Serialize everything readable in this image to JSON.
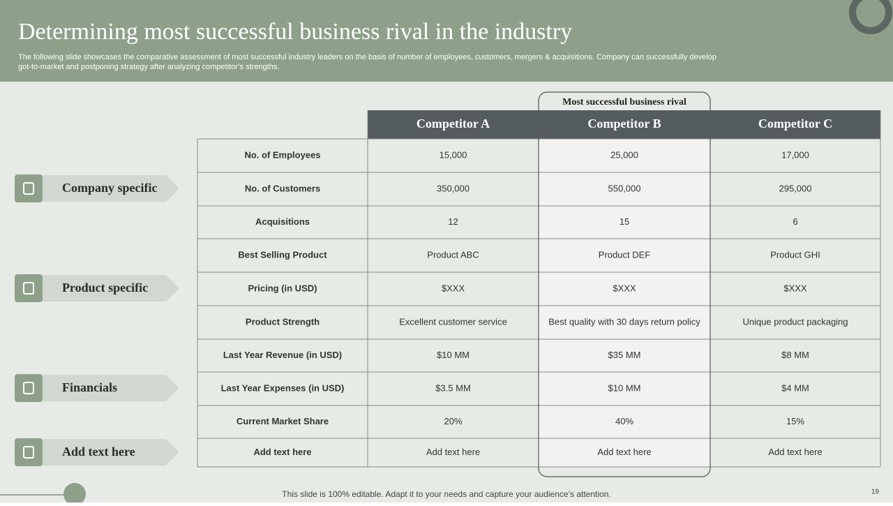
{
  "header": {
    "title": "Determining most successful business rival in the industry",
    "subtitle_lines": [
      "The following slide showcases the comparative assessment of most successful industry leaders on the basis of number of employees, customers, mergers & acquisitions. Company can successfully develop",
      "got-to-market and postponing strategy after analyzing competitor’s strengths."
    ]
  },
  "highlight_label": "Most successful business rival",
  "categories": [
    "Company specific",
    "Product specific",
    "Financials",
    "Add text here"
  ],
  "table": {
    "columns": [
      "Competitor A",
      "Competitor B",
      "Competitor C"
    ],
    "rows": [
      {
        "label": "No. of Employees",
        "cells": [
          "15,000",
          "25,000",
          "17,000"
        ]
      },
      {
        "label": "No. of Customers",
        "cells": [
          "350,000",
          "550,000",
          "295,000"
        ]
      },
      {
        "label": "Acquisitions",
        "cells": [
          "12",
          "15",
          "6"
        ]
      },
      {
        "label": "Best  Selling Product",
        "cells": [
          "Product ABC",
          "Product DEF",
          "Product GHI"
        ]
      },
      {
        "label": "Pricing (in USD)",
        "cells": [
          "$XXX",
          "$XXX",
          "$XXX"
        ]
      },
      {
        "label": "Product  Strength",
        "cells": [
          "Excellent customer service",
          "Best quality with 30 days return  policy",
          "Unique  product packaging"
        ]
      },
      {
        "label": "Last Year Revenue (in USD)",
        "cells": [
          "$10 MM",
          "$35 MM",
          "$8 MM"
        ]
      },
      {
        "label": "Last Year Expenses  (in USD)",
        "cells": [
          "$3.5 MM",
          "$10 MM",
          "$4 MM"
        ]
      },
      {
        "label": "Current Market Share",
        "cells": [
          "20%",
          "40%",
          "15%"
        ]
      },
      {
        "label": "Add text here",
        "cells": [
          "Add text here",
          "Add text here",
          "Add text here"
        ]
      }
    ]
  },
  "footer": {
    "text": "This slide is 100% editable. Adapt it to your needs and capture your audience’s attention.",
    "page": "19"
  }
}
